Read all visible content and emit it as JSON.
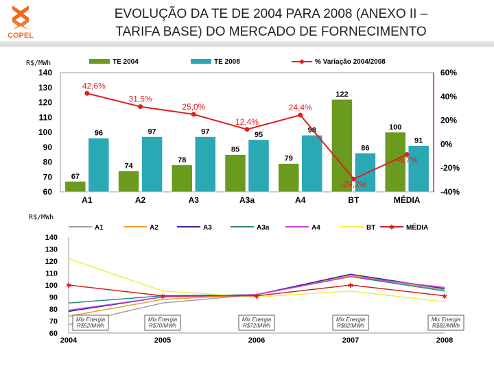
{
  "header": {
    "logo_text": "COPEL",
    "title_line1": "EVOLUÇÃO DA TE DE 2004 PARA 2008 (ANEXO II –",
    "title_line2": "TARIFA BASE) DO MERCADO DE FORNECIMENTO"
  },
  "chart_data": [
    {
      "type": "bar",
      "ylabel": "R$/MWh",
      "categories": [
        "A1",
        "A2",
        "A3",
        "A3a",
        "A4",
        "BT",
        "MÉDIA"
      ],
      "series": [
        {
          "name": "TE 2004",
          "values": [
            67,
            74,
            78,
            85,
            79,
            122,
            100
          ],
          "color": "#6a9a1e"
        },
        {
          "name": "TE 2008",
          "values": [
            96,
            97,
            97,
            95,
            98,
            86,
            91
          ],
          "color": "#2aa8b4"
        }
      ],
      "line_series": {
        "name": "% Variação 2004/2008",
        "values": [
          42.6,
          31.5,
          25.0,
          12.4,
          24.4,
          -29.2,
          -8.7
        ],
        "labels": [
          "42,6%",
          "31,5%",
          "25,0%",
          "12,4%",
          "24,4%",
          "-29,2%",
          "-8,7%"
        ],
        "color": "#e02020"
      },
      "ylim": [
        60,
        140
      ],
      "yticks": [
        "60",
        "70",
        "80",
        "90",
        "100",
        "110",
        "120",
        "130",
        "140"
      ],
      "y2lim": [
        -40,
        60
      ],
      "y2ticks": [
        "-40%",
        "-20%",
        "0%",
        "20%",
        "40%",
        "60%"
      ],
      "legend": "top"
    },
    {
      "type": "line",
      "ylabel": "R$/MWh",
      "x": [
        "2004",
        "2005",
        "2006",
        "2007",
        "2008"
      ],
      "ylim": [
        60,
        140
      ],
      "yticks": [
        "60",
        "70",
        "80",
        "90",
        "100",
        "110",
        "120",
        "130",
        "140"
      ],
      "series": [
        {
          "name": "A1",
          "color": "#a0a0a0",
          "values": [
            67,
            85,
            92,
            107,
            96
          ]
        },
        {
          "name": "A2",
          "color": "#e6a030",
          "values": [
            74,
            88,
            92,
            108,
            97
          ]
        },
        {
          "name": "A3",
          "color": "#2a2a9a",
          "values": [
            78,
            90,
            92,
            109,
            97
          ]
        },
        {
          "name": "A3a",
          "color": "#2a8a7a",
          "values": [
            85,
            91,
            92,
            107,
            95
          ]
        },
        {
          "name": "A4",
          "color": "#d040d0",
          "values": [
            79,
            90,
            92,
            107,
            98
          ]
        },
        {
          "name": "BT",
          "color": "#f0f040",
          "values": [
            122,
            95,
            90,
            95,
            86
          ]
        },
        {
          "name": "MÉDIA",
          "color": "#d02020",
          "values": [
            100,
            91,
            91,
            100,
            91
          ]
        }
      ],
      "annotations": [
        {
          "x": "2004",
          "text1": "Mix Energia",
          "text2": "R$52/MWh"
        },
        {
          "x": "2005",
          "text1": "Mix Energia",
          "text2": "R$70/MWh"
        },
        {
          "x": "2006",
          "text1": "Mix Energia",
          "text2": "R$72/MWh"
        },
        {
          "x": "2007",
          "text1": "Mix Energia",
          "text2": "R$82/MWh"
        },
        {
          "x": "2008",
          "text1": "Mix Energia",
          "text2": "R$82/MWh"
        }
      ],
      "legend": "top"
    }
  ]
}
